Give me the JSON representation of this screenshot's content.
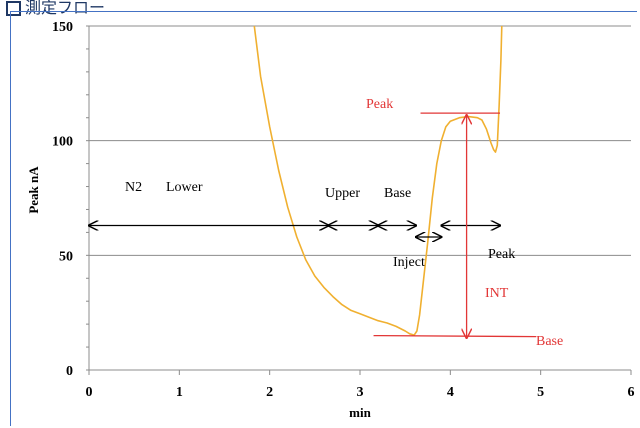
{
  "page_title": "測定フロー",
  "chart_data": {
    "type": "line",
    "title": "",
    "xlabel": "min",
    "ylabel": "Peak nA",
    "xlim": [
      0,
      6
    ],
    "ylim": [
      0,
      150
    ],
    "x_ticks": [
      "0",
      "1",
      "2",
      "3",
      "4",
      "5",
      "6"
    ],
    "y_ticks": [
      "0",
      "50",
      "100",
      "150"
    ],
    "grid": "horizontal",
    "series": [
      {
        "color": "#f0b030",
        "points": [
          [
            1.83,
            150
          ],
          [
            1.9,
            128
          ],
          [
            2.0,
            106
          ],
          [
            2.1,
            87
          ],
          [
            2.2,
            71
          ],
          [
            2.3,
            58
          ],
          [
            2.4,
            48
          ],
          [
            2.5,
            41
          ],
          [
            2.6,
            36
          ],
          [
            2.7,
            32
          ],
          [
            2.8,
            28.5
          ],
          [
            2.9,
            26
          ],
          [
            3.0,
            24.5
          ],
          [
            3.1,
            23
          ],
          [
            3.2,
            21.5
          ],
          [
            3.3,
            20.5
          ],
          [
            3.4,
            19
          ],
          [
            3.5,
            17
          ],
          [
            3.55,
            15.8
          ],
          [
            3.6,
            15.2
          ],
          [
            3.63,
            17
          ],
          [
            3.66,
            24
          ],
          [
            3.7,
            38
          ],
          [
            3.75,
            56
          ],
          [
            3.8,
            75
          ],
          [
            3.85,
            90
          ],
          [
            3.9,
            100
          ],
          [
            3.95,
            106
          ],
          [
            4.0,
            108.5
          ],
          [
            4.1,
            110
          ],
          [
            4.2,
            110.5
          ],
          [
            4.3,
            110
          ],
          [
            4.35,
            109
          ],
          [
            4.4,
            105
          ],
          [
            4.45,
            99
          ],
          [
            4.48,
            96
          ],
          [
            4.5,
            95
          ],
          [
            4.52,
            98
          ],
          [
            4.54,
            115
          ],
          [
            4.56,
            135
          ],
          [
            4.57,
            150
          ]
        ]
      }
    ],
    "accent_red": "#e23636",
    "annotations": {
      "n2": "N2",
      "lower": "Lower",
      "upper": "Upper",
      "base_phase": "Base",
      "inject": "Inject",
      "peak_phase": "Peak",
      "peak_marker": "Peak",
      "int": "INT",
      "base_marker": "Base"
    },
    "phase_boundaries_min": [
      0,
      2.65,
      3.2,
      3.62,
      3.9,
      4.55
    ],
    "peak_marker": {
      "x": [
        3.67,
        4.55
      ],
      "y": 112
    },
    "base_marker": {
      "x": [
        3.15,
        4.95
      ],
      "y": 15
    },
    "int_arrow": {
      "x": 4.18,
      "y_top": 112,
      "y_bottom": 14
    }
  }
}
